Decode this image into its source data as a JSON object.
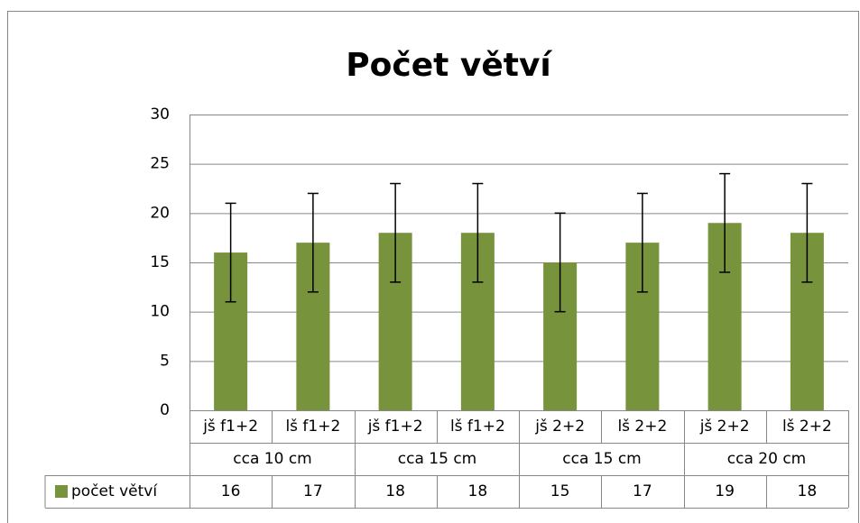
{
  "chart_data": {
    "type": "bar",
    "title": "Počet větví",
    "categories": [
      "jš f1+2",
      "lš f1+2",
      "jš f1+2",
      "lš f1+2",
      "jš 2+2",
      "lš 2+2",
      "jš 2+2",
      "lš 2+2"
    ],
    "group_labels": [
      "cca 10 cm",
      null,
      "cca 15 cm",
      null,
      "cca 15 cm",
      null,
      "cca 20 cm",
      null
    ],
    "series": [
      {
        "name": "počet větví",
        "color": "#77933c",
        "values": [
          16,
          17,
          18,
          18,
          15,
          17,
          19,
          18
        ],
        "errors": [
          5,
          5,
          5,
          5,
          5,
          5,
          5,
          5
        ]
      }
    ],
    "ylim": [
      0,
      30
    ],
    "yticks": [
      0,
      5,
      10,
      15,
      20,
      25,
      30
    ],
    "grid": true,
    "data_table": true
  }
}
